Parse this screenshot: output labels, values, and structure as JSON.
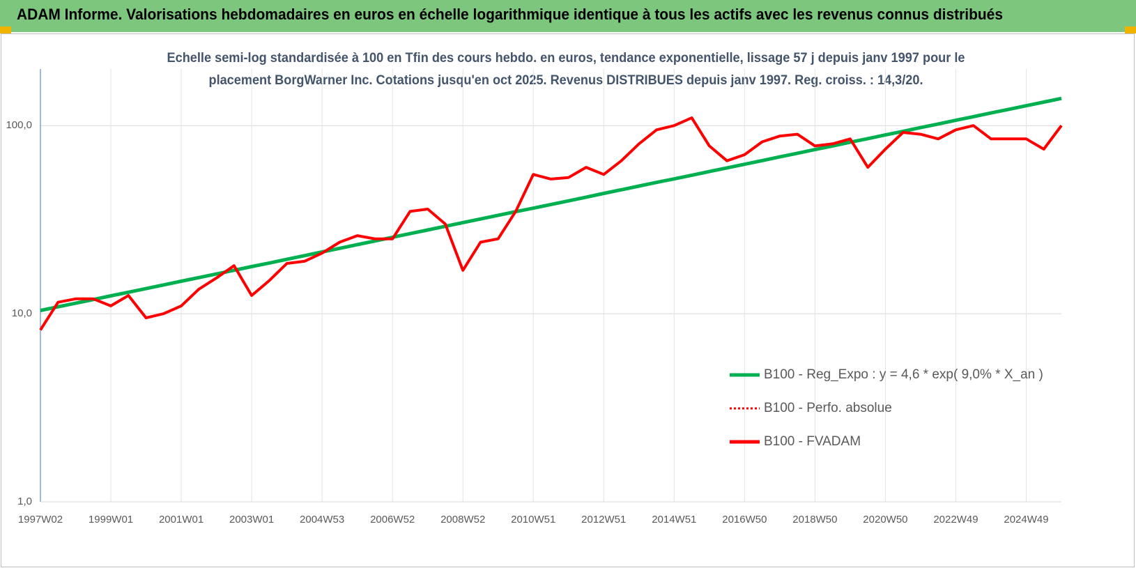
{
  "chart_data": {
    "type": "line",
    "title": "ADAM Informe. Valorisations hebdomadaires en euros en échelle logarithmique identique à tous les actifs avec les revenus connus distribués",
    "subtitle": [
      "Echelle semi-log standardisée à 100 en Tfin des cours hebdo. en euros, tendance exponentielle, lissage 57 j depuis janv 1997 pour le",
      "placement BorgWarner Inc. Cotations jusqu'en oct 2025. Revenus DISTRIBUES depuis janv 1997. Reg. croiss. : 14,3/20."
    ],
    "log_scale": true,
    "grid": true,
    "legend_position": "right",
    "ylim": [
      1,
      200
    ],
    "yticks": [
      {
        "value": 1,
        "label": "1,0"
      },
      {
        "value": 10,
        "label": "10,0"
      },
      {
        "value": 100,
        "label": "100,0"
      }
    ],
    "categories": [
      "1997W02",
      null,
      null,
      null,
      "1999W01",
      null,
      null,
      null,
      "2001W01",
      null,
      null,
      null,
      "2003W01",
      null,
      null,
      null,
      "2004W53",
      null,
      null,
      null,
      "2006W52",
      null,
      null,
      null,
      "2008W52",
      null,
      null,
      null,
      "2010W51",
      null,
      null,
      null,
      "2012W51",
      null,
      null,
      null,
      "2014W51",
      null,
      null,
      null,
      "2016W50",
      null,
      null,
      null,
      "2018W50",
      null,
      null,
      null,
      "2020W50",
      null,
      null,
      null,
      "2022W49",
      null,
      null,
      null,
      "2024W49",
      null,
      null
    ],
    "series": [
      {
        "name": "B100 - Reg_Expo : y = 4,6 * exp( 9,0% *  X_an )",
        "color": "#00b050",
        "style": "solid",
        "values": [
          10.4,
          10.88,
          11.37,
          11.89,
          12.44,
          13.01,
          13.6,
          14.23,
          14.88,
          15.56,
          16.27,
          17.02,
          17.8,
          18.6,
          19.46,
          20.35,
          21.3,
          22.27,
          23.29,
          24.36,
          25.5,
          26.65,
          27.87,
          29.15,
          30.5,
          31.88,
          33.35,
          34.87,
          36.4,
          38.07,
          39.82,
          41.64,
          43.6,
          45.6,
          47.7,
          49.9,
          52.1,
          54.5,
          57.0,
          59.6,
          62.3,
          65.2,
          68.2,
          71.3,
          74.6,
          78.0,
          81.6,
          85.3,
          89.2,
          93.3,
          97.6,
          102.0,
          106.7,
          111.6,
          116.7,
          122.0,
          127.6,
          133.4,
          139.5
        ]
      },
      {
        "name": "B100 - Perfo. absolue",
        "color": "#ff0000",
        "style": "dotted",
        "values": [
          8.2,
          11.5,
          12,
          12,
          11,
          12.5,
          9.5,
          10,
          11,
          13.5,
          15.5,
          18,
          12.5,
          15,
          18.5,
          19,
          21,
          24,
          26,
          25,
          25,
          35,
          36,
          30,
          17,
          24,
          25,
          35,
          55,
          52,
          53,
          60,
          55,
          65,
          80,
          95,
          100,
          110,
          78,
          65,
          70,
          82,
          88,
          90,
          78,
          80,
          85,
          60,
          75,
          92,
          90,
          85,
          95,
          100,
          85,
          85,
          85,
          75,
          100
        ]
      },
      {
        "name": "B100 - FVADAM",
        "color": "#ff0000",
        "style": "solid",
        "values": [
          8.2,
          11.5,
          12,
          12,
          11,
          12.5,
          9.5,
          10,
          11,
          13.5,
          15.5,
          18,
          12.5,
          15,
          18.5,
          19,
          21,
          24,
          26,
          25,
          25,
          35,
          36,
          30,
          17,
          24,
          25,
          35,
          55,
          52,
          53,
          60,
          55,
          65,
          80,
          95,
          100,
          110,
          78,
          65,
          70,
          82,
          88,
          90,
          78,
          80,
          85,
          60,
          75,
          92,
          90,
          85,
          95,
          100,
          85,
          85,
          85,
          75,
          100
        ]
      }
    ]
  }
}
